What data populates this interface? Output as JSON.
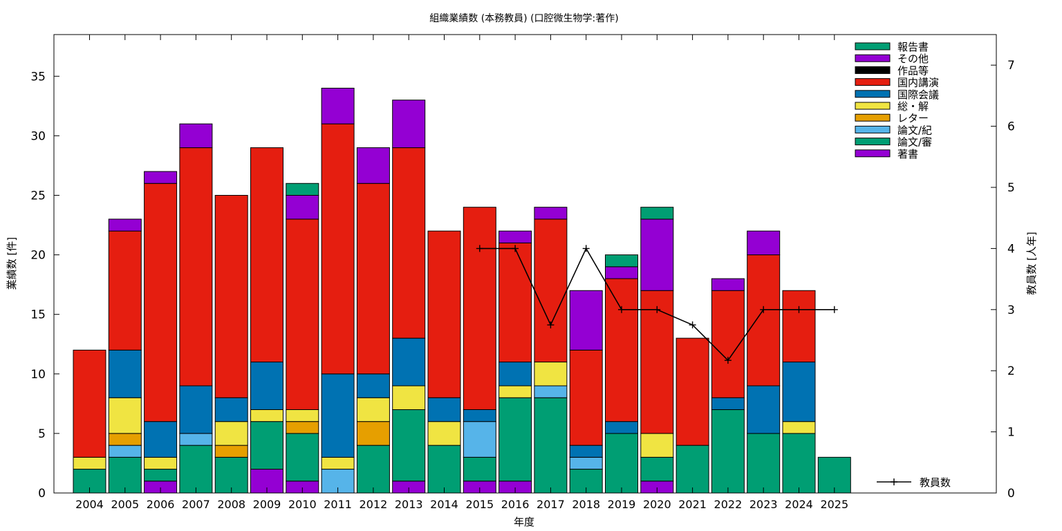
{
  "chart_data": {
    "type": "bar",
    "stacked": true,
    "title": "組織業績数 (本務教員) (口腔微生物学:著作)",
    "xlabel": "年度",
    "ylabel": "業績数 [件]",
    "y2label": "教員数 [人年]",
    "ylim": [
      0,
      38.5
    ],
    "y2lim": [
      0,
      7.5
    ],
    "yticks": [
      0,
      5,
      10,
      15,
      20,
      25,
      30,
      35
    ],
    "y2ticks": [
      0,
      1,
      2,
      3,
      4,
      5,
      6,
      7
    ],
    "grid": false,
    "legend_position": "top-right",
    "categories": [
      "2004",
      "2005",
      "2006",
      "2007",
      "2008",
      "2009",
      "2010",
      "2011",
      "2012",
      "2013",
      "2014",
      "2015",
      "2016",
      "2017",
      "2018",
      "2019",
      "2020",
      "2021",
      "2022",
      "2023",
      "2024",
      "2025"
    ],
    "series": [
      {
        "name": "著書",
        "color": "#9400d3",
        "values": [
          0,
          0,
          1,
          0,
          0,
          2,
          1,
          0,
          0,
          1,
          0,
          1,
          1,
          0,
          0,
          0,
          1,
          0,
          0,
          0,
          0,
          0
        ]
      },
      {
        "name": "論文/審",
        "color": "#009e73",
        "values": [
          2,
          3,
          1,
          4,
          3,
          4,
          4,
          0,
          4,
          6,
          4,
          2,
          7,
          8,
          2,
          5,
          2,
          4,
          7,
          5,
          5,
          3
        ]
      },
      {
        "name": "論文/紀",
        "color": "#56b4e9",
        "values": [
          0,
          1,
          0,
          1,
          0,
          0,
          0,
          2,
          0,
          0,
          0,
          3,
          0,
          1,
          1,
          0,
          0,
          0,
          0,
          0,
          0,
          0
        ]
      },
      {
        "name": "レター",
        "color": "#e69f00",
        "values": [
          0,
          1,
          0,
          0,
          1,
          0,
          1,
          0,
          2,
          0,
          0,
          0,
          0,
          0,
          0,
          0,
          0,
          0,
          0,
          0,
          0,
          0
        ]
      },
      {
        "name": "総・解",
        "color": "#f0e442",
        "values": [
          1,
          3,
          1,
          0,
          2,
          1,
          1,
          1,
          2,
          2,
          2,
          0,
          1,
          2,
          0,
          0,
          2,
          0,
          0,
          0,
          1,
          0
        ]
      },
      {
        "name": "国際会議",
        "color": "#0072b2",
        "values": [
          0,
          4,
          3,
          4,
          2,
          4,
          0,
          7,
          2,
          4,
          2,
          1,
          2,
          0,
          1,
          1,
          0,
          0,
          1,
          4,
          5,
          0
        ]
      },
      {
        "name": "国内講演",
        "color": "#e51e10",
        "values": [
          9,
          10,
          20,
          20,
          17,
          18,
          16,
          21,
          16,
          16,
          14,
          17,
          10,
          12,
          8,
          12,
          12,
          9,
          9,
          11,
          6,
          0
        ]
      },
      {
        "name": "作品等",
        "color": "#000000",
        "values": [
          0,
          0,
          0,
          0,
          0,
          0,
          0,
          0,
          0,
          0,
          0,
          0,
          0,
          0,
          0,
          0,
          0,
          0,
          0,
          0,
          0,
          0
        ]
      },
      {
        "name": "その他",
        "color": "#9400d3",
        "values": [
          0,
          1,
          1,
          2,
          0,
          0,
          2,
          3,
          3,
          4,
          0,
          0,
          1,
          1,
          5,
          1,
          6,
          0,
          1,
          2,
          0,
          0
        ]
      },
      {
        "name": "報告書",
        "color": "#009e73",
        "values": [
          0,
          0,
          0,
          0,
          0,
          0,
          1,
          0,
          0,
          0,
          0,
          0,
          0,
          0,
          0,
          1,
          1,
          0,
          0,
          0,
          0,
          0
        ]
      }
    ],
    "line_series": {
      "name": "教員数",
      "color": "#000000",
      "axis": "y2",
      "points": [
        {
          "x": "2015",
          "y": 4
        },
        {
          "x": "2016",
          "y": 4
        },
        {
          "x": "2017",
          "y": 2.75
        },
        {
          "x": "2018",
          "y": 4
        },
        {
          "x": "2019",
          "y": 3
        },
        {
          "x": "2020",
          "y": 3
        },
        {
          "x": "2021",
          "y": 2.75
        },
        {
          "x": "2022",
          "y": 2.17
        },
        {
          "x": "2023",
          "y": 3
        },
        {
          "x": "2024",
          "y": 3
        },
        {
          "x": "2025",
          "y": 3
        }
      ]
    },
    "legend_order": [
      "報告書",
      "その他",
      "作品等",
      "国内講演",
      "国際会議",
      "総・解",
      "レター",
      "論文/紀",
      "論文/審",
      "著書"
    ]
  }
}
